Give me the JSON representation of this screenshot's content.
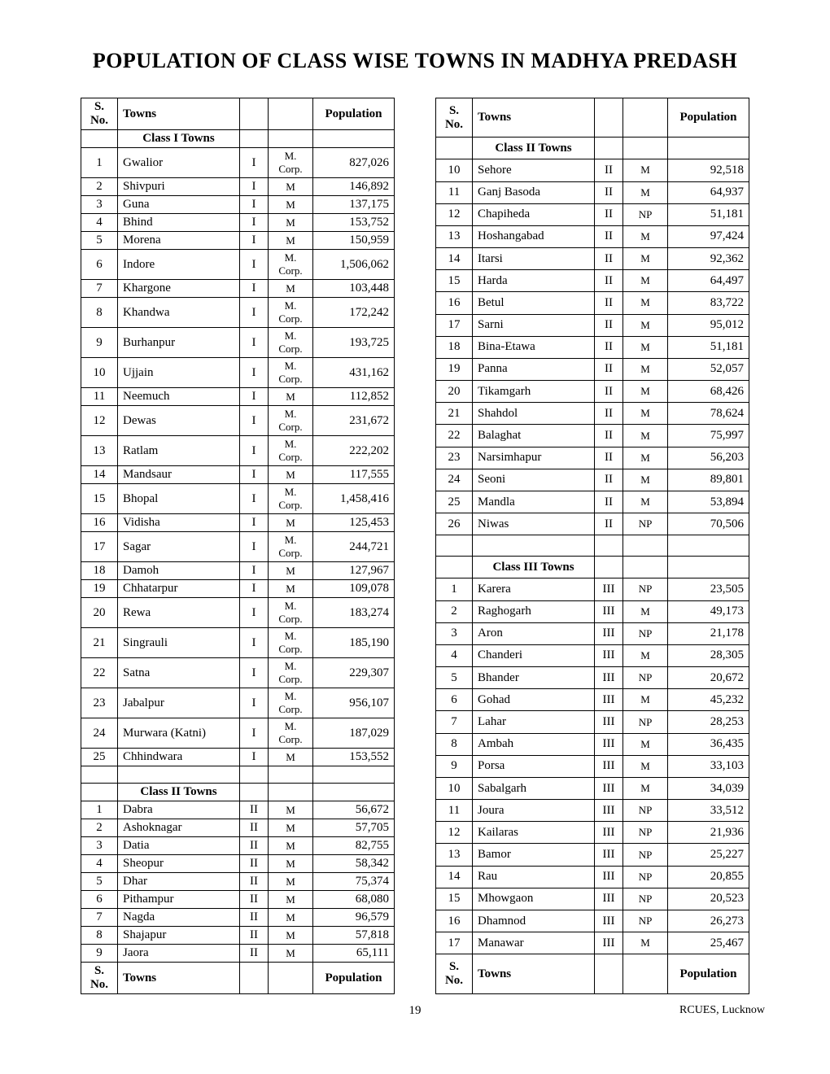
{
  "title": "POPULATION OF CLASS WISE TOWNS IN MADHYA PREDASH",
  "headers": {
    "sno": "S. No.",
    "towns": "Towns",
    "population": "Population"
  },
  "sections": {
    "class1": "Class I Towns",
    "class2": "Class II Towns",
    "class3": "Class III Towns"
  },
  "left": [
    {
      "header": true
    },
    {
      "section": "class1"
    },
    {
      "sno": "1",
      "town": "Gwalior",
      "cls": "I",
      "type": "M. Corp.",
      "pop": "827,026"
    },
    {
      "sno": "2",
      "town": "Shivpuri",
      "cls": "I",
      "type": "M",
      "pop": "146,892"
    },
    {
      "sno": "3",
      "town": "Guna",
      "cls": "I",
      "type": "M",
      "pop": "137,175"
    },
    {
      "sno": "4",
      "town": "Bhind",
      "cls": "I",
      "type": "M",
      "pop": "153,752"
    },
    {
      "sno": "5",
      "town": "Morena",
      "cls": "I",
      "type": "M",
      "pop": "150,959"
    },
    {
      "sno": "6",
      "town": "Indore",
      "cls": "I",
      "type": "M. Corp.",
      "pop": "1,506,062"
    },
    {
      "sno": "7",
      "town": "Khargone",
      "cls": "I",
      "type": "M",
      "pop": "103,448"
    },
    {
      "sno": "8",
      "town": "Khandwa",
      "cls": "I",
      "type": "M. Corp.",
      "pop": "172,242"
    },
    {
      "sno": "9",
      "town": "Burhanpur",
      "cls": "I",
      "type": "M. Corp.",
      "pop": "193,725"
    },
    {
      "sno": "10",
      "town": "Ujjain",
      "cls": "I",
      "type": "M. Corp.",
      "pop": "431,162"
    },
    {
      "sno": "11",
      "town": "Neemuch",
      "cls": "I",
      "type": "M",
      "pop": "112,852"
    },
    {
      "sno": "12",
      "town": "Dewas",
      "cls": "I",
      "type": "M. Corp.",
      "pop": "231,672"
    },
    {
      "sno": "13",
      "town": "Ratlam",
      "cls": "I",
      "type": "M. Corp.",
      "pop": "222,202"
    },
    {
      "sno": "14",
      "town": "Mandsaur",
      "cls": "I",
      "type": "M",
      "pop": "117,555"
    },
    {
      "sno": "15",
      "town": "Bhopal",
      "cls": "I",
      "type": "M. Corp.",
      "pop": "1,458,416"
    },
    {
      "sno": "16",
      "town": "Vidisha",
      "cls": "I",
      "type": "M",
      "pop": "125,453"
    },
    {
      "sno": "17",
      "town": "Sagar",
      "cls": "I",
      "type": "M. Corp.",
      "pop": "244,721"
    },
    {
      "sno": "18",
      "town": "Damoh",
      "cls": "I",
      "type": "M",
      "pop": "127,967"
    },
    {
      "sno": "19",
      "town": "Chhatarpur",
      "cls": "I",
      "type": "M",
      "pop": "109,078"
    },
    {
      "sno": "20",
      "town": "Rewa",
      "cls": "I",
      "type": "M. Corp.",
      "pop": "183,274"
    },
    {
      "sno": "21",
      "town": "Singrauli",
      "cls": "I",
      "type": "M. Corp.",
      "pop": "185,190"
    },
    {
      "sno": "22",
      "town": "Satna",
      "cls": "I",
      "type": "M. Corp.",
      "pop": "229,307"
    },
    {
      "sno": "23",
      "town": "Jabalpur",
      "cls": "I",
      "type": "M. Corp.",
      "pop": "956,107"
    },
    {
      "sno": "24",
      "town": "Murwara (Katni)",
      "cls": "I",
      "type": "M. Corp.",
      "pop": "187,029"
    },
    {
      "sno": "25",
      "town": "Chhindwara",
      "cls": "I",
      "type": "M",
      "pop": "153,552"
    },
    {
      "blank": true
    },
    {
      "section": "class2"
    },
    {
      "sno": "1",
      "town": "Dabra",
      "cls": "II",
      "type": "M",
      "pop": "56,672"
    },
    {
      "sno": "2",
      "town": "Ashoknagar",
      "cls": "II",
      "type": "M",
      "pop": "57,705"
    },
    {
      "sno": "3",
      "town": "Datia",
      "cls": "II",
      "type": "M",
      "pop": "82,755"
    },
    {
      "sno": "4",
      "town": "Sheopur",
      "cls": "II",
      "type": "M",
      "pop": "58,342"
    },
    {
      "sno": "5",
      "town": "Dhar",
      "cls": "II",
      "type": "M",
      "pop": "75,374"
    },
    {
      "sno": "6",
      "town": "Pithampur",
      "cls": "II",
      "type": "M",
      "pop": "68,080"
    },
    {
      "sno": "7",
      "town": "Nagda",
      "cls": "II",
      "type": "M",
      "pop": "96,579"
    },
    {
      "sno": "8",
      "town": "Shajapur",
      "cls": "II",
      "type": "M",
      "pop": "57,818"
    },
    {
      "sno": "9",
      "town": "Jaora",
      "cls": "II",
      "type": "M",
      "pop": "65,111"
    },
    {
      "header": true
    }
  ],
  "right": [
    {
      "header": true
    },
    {
      "section": "class2"
    },
    {
      "sno": "10",
      "town": "Sehore",
      "cls": "II",
      "type": "M",
      "pop": "92,518"
    },
    {
      "sno": "11",
      "town": "Ganj Basoda",
      "cls": "II",
      "type": "M",
      "pop": "64,937"
    },
    {
      "sno": "12",
      "town": "Chapiheda",
      "cls": "II",
      "type": "NP",
      "pop": "51,181"
    },
    {
      "sno": "13",
      "town": "Hoshangabad",
      "cls": "II",
      "type": "M",
      "pop": "97,424"
    },
    {
      "sno": "14",
      "town": "Itarsi",
      "cls": "II",
      "type": "M",
      "pop": "92,362"
    },
    {
      "sno": "15",
      "town": "Harda",
      "cls": "II",
      "type": "M",
      "pop": "64,497"
    },
    {
      "sno": "16",
      "town": "Betul",
      "cls": "II",
      "type": "M",
      "pop": "83,722"
    },
    {
      "sno": "17",
      "town": "Sarni",
      "cls": "II",
      "type": "M",
      "pop": "95,012"
    },
    {
      "sno": "18",
      "town": "Bina-Etawa",
      "cls": "II",
      "type": "M",
      "pop": "51,181"
    },
    {
      "sno": "19",
      "town": "Panna",
      "cls": "II",
      "type": "M",
      "pop": "52,057"
    },
    {
      "sno": "20",
      "town": "Tikamgarh",
      "cls": "II",
      "type": "M",
      "pop": "68,426"
    },
    {
      "sno": "21",
      "town": "Shahdol",
      "cls": "II",
      "type": "M",
      "pop": "78,624"
    },
    {
      "sno": "22",
      "town": "Balaghat",
      "cls": "II",
      "type": "M",
      "pop": "75,997"
    },
    {
      "sno": "23",
      "town": "Narsimhapur",
      "cls": "II",
      "type": "M",
      "pop": "56,203"
    },
    {
      "sno": "24",
      "town": "Seoni",
      "cls": "II",
      "type": "M",
      "pop": "89,801"
    },
    {
      "sno": "25",
      "town": "Mandla",
      "cls": "II",
      "type": "M",
      "pop": "53,894"
    },
    {
      "sno": "26",
      "town": "Niwas",
      "cls": "II",
      "type": "NP",
      "pop": "70,506"
    },
    {
      "blank": true
    },
    {
      "section": "class3"
    },
    {
      "sno": "1",
      "town": "Karera",
      "cls": "III",
      "type": "NP",
      "pop": "23,505"
    },
    {
      "sno": "2",
      "town": "Raghogarh",
      "cls": "III",
      "type": "M",
      "pop": "49,173"
    },
    {
      "sno": "3",
      "town": "Aron",
      "cls": "III",
      "type": "NP",
      "pop": "21,178"
    },
    {
      "sno": "4",
      "town": "Chanderi",
      "cls": "III",
      "type": "M",
      "pop": "28,305"
    },
    {
      "sno": "5",
      "town": "Bhander",
      "cls": "III",
      "type": "NP",
      "pop": "20,672"
    },
    {
      "sno": "6",
      "town": "Gohad",
      "cls": "III",
      "type": "M",
      "pop": "45,232"
    },
    {
      "sno": "7",
      "town": "Lahar",
      "cls": "III",
      "type": "NP",
      "pop": "28,253"
    },
    {
      "sno": "8",
      "town": "Ambah",
      "cls": "III",
      "type": "M",
      "pop": "36,435"
    },
    {
      "sno": "9",
      "town": "Porsa",
      "cls": "III",
      "type": "M",
      "pop": "33,103"
    },
    {
      "sno": "10",
      "town": "Sabalgarh",
      "cls": "III",
      "type": "M",
      "pop": "34,039"
    },
    {
      "sno": "11",
      "town": "Joura",
      "cls": "III",
      "type": "NP",
      "pop": "33,512"
    },
    {
      "sno": "12",
      "town": "Kailaras",
      "cls": "III",
      "type": "NP",
      "pop": "21,936"
    },
    {
      "sno": "13",
      "town": "Bamor",
      "cls": "III",
      "type": "NP",
      "pop": "25,227"
    },
    {
      "sno": "14",
      "town": "Rau",
      "cls": "III",
      "type": "NP",
      "pop": "20,855"
    },
    {
      "sno": "15",
      "town": "Mhowgaon",
      "cls": "III",
      "type": "NP",
      "pop": "20,523"
    },
    {
      "sno": "16",
      "town": "Dhamnod",
      "cls": "III",
      "type": "NP",
      "pop": "26,273"
    },
    {
      "sno": "17",
      "town": "Manawar",
      "cls": "III",
      "type": "M",
      "pop": "25,467"
    },
    {
      "header": true
    }
  ],
  "footer": {
    "page": "19",
    "source": "RCUES, Lucknow"
  }
}
